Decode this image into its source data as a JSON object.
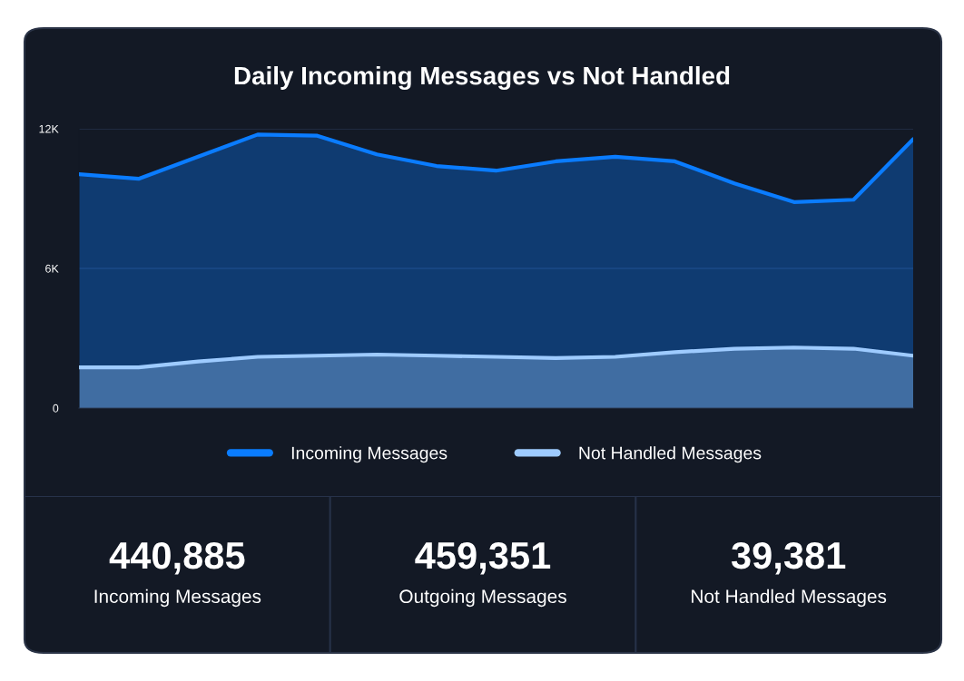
{
  "chart_data": [
    {
      "type": "area",
      "title": "Daily Incoming Messages vs Not Handled",
      "categories": [
        null,
        null,
        null,
        null,
        null,
        null,
        null,
        null,
        null,
        null,
        null,
        null,
        null,
        null,
        null
      ],
      "series": [
        {
          "name": "Incoming Messages",
          "color": "#0a7cff",
          "values": [
            10050,
            9850,
            10800,
            11750,
            11700,
            10900,
            10400,
            10200,
            10600,
            10800,
            10600,
            9650,
            8850,
            8950,
            11550
          ]
        },
        {
          "name": "Not Handled Messages",
          "color": "#9ecbff",
          "values": [
            1750,
            1750,
            2000,
            2200,
            2250,
            2300,
            2250,
            2200,
            2150,
            2200,
            2400,
            2550,
            2600,
            2550,
            2250
          ]
        }
      ],
      "ylim": [
        0,
        12000
      ],
      "yticks": [
        0,
        {
          "value": 6000,
          "label": "6K"
        },
        {
          "value": 12000,
          "label": "12K"
        }
      ],
      "tick_labels": "y",
      "grid": "y",
      "legend": "bottom"
    },
    {
      "type": "other",
      "annotations": [
        "440,885",
        "Incoming Messages",
        "459,351",
        "Outgoing Messages",
        "39,381",
        "Not Handled Messages"
      ]
    }
  ]
}
